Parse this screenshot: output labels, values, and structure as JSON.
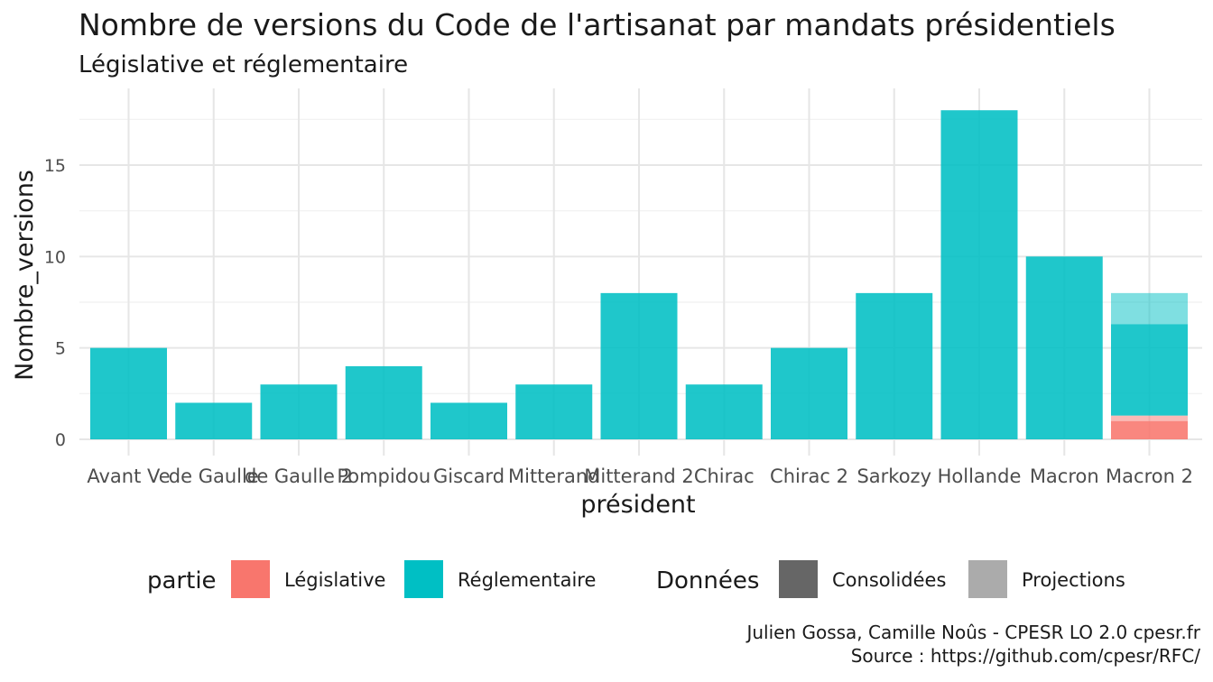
{
  "chart_data": {
    "type": "bar",
    "stacked": true,
    "title": "Nombre de versions du Code de l'artisanat par mandats présidentiels",
    "subtitle": "Législative et réglementaire",
    "xlabel": "président",
    "ylabel": "Nombre_versions",
    "ylim": [
      0,
      18.8
    ],
    "yticks": [
      0,
      5,
      10,
      15
    ],
    "grid": true,
    "categories": [
      "Avant Ve",
      "de Gaulle",
      "de Gaulle 2",
      "Pompidou",
      "Giscard",
      "Mitterand",
      "Mitterand 2",
      "Chirac",
      "Chirac 2",
      "Sarkozy",
      "Hollande",
      "Macron",
      "Macron 2"
    ],
    "series": [
      {
        "name": "Législative",
        "donnees": "Consolidées",
        "values": [
          0,
          0,
          0,
          0,
          0,
          0,
          0,
          0,
          0,
          0,
          0,
          0,
          1
        ]
      },
      {
        "name": "Législative",
        "donnees": "Projections",
        "values": [
          0,
          0,
          0,
          0,
          0,
          0,
          0,
          0,
          0,
          0,
          0,
          0,
          0.3
        ]
      },
      {
        "name": "Réglementaire",
        "donnees": "Consolidées",
        "values": [
          5,
          2,
          3,
          4,
          2,
          3,
          8,
          3,
          5,
          8,
          18,
          10,
          5
        ]
      },
      {
        "name": "Réglementaire",
        "donnees": "Projections",
        "values": [
          0,
          0,
          0,
          0,
          0,
          0,
          0,
          0,
          0,
          0,
          0,
          0,
          1.7
        ]
      }
    ],
    "colors": {
      "Législative": "#F8766D",
      "Réglementaire": "#00BFC4",
      "Consolidées": "#666666",
      "Projections": "#ABABAB"
    },
    "legend": {
      "placement": "bottom",
      "groups": [
        {
          "title": "partie",
          "items": [
            {
              "label": "Législative",
              "color": "#F8766D"
            },
            {
              "label": "Réglementaire",
              "color": "#00BFC4"
            }
          ]
        },
        {
          "title": "Données",
          "items": [
            {
              "label": "Consolidées",
              "color": "#666666"
            },
            {
              "label": "Projections",
              "color": "#ABABAB"
            }
          ]
        }
      ]
    }
  },
  "caption": {
    "line1": "Julien Gossa, Camille Noûs - CPESR LO 2.0 cpesr.fr",
    "line2": "Source : https://github.com/cpesr/RFC/"
  }
}
